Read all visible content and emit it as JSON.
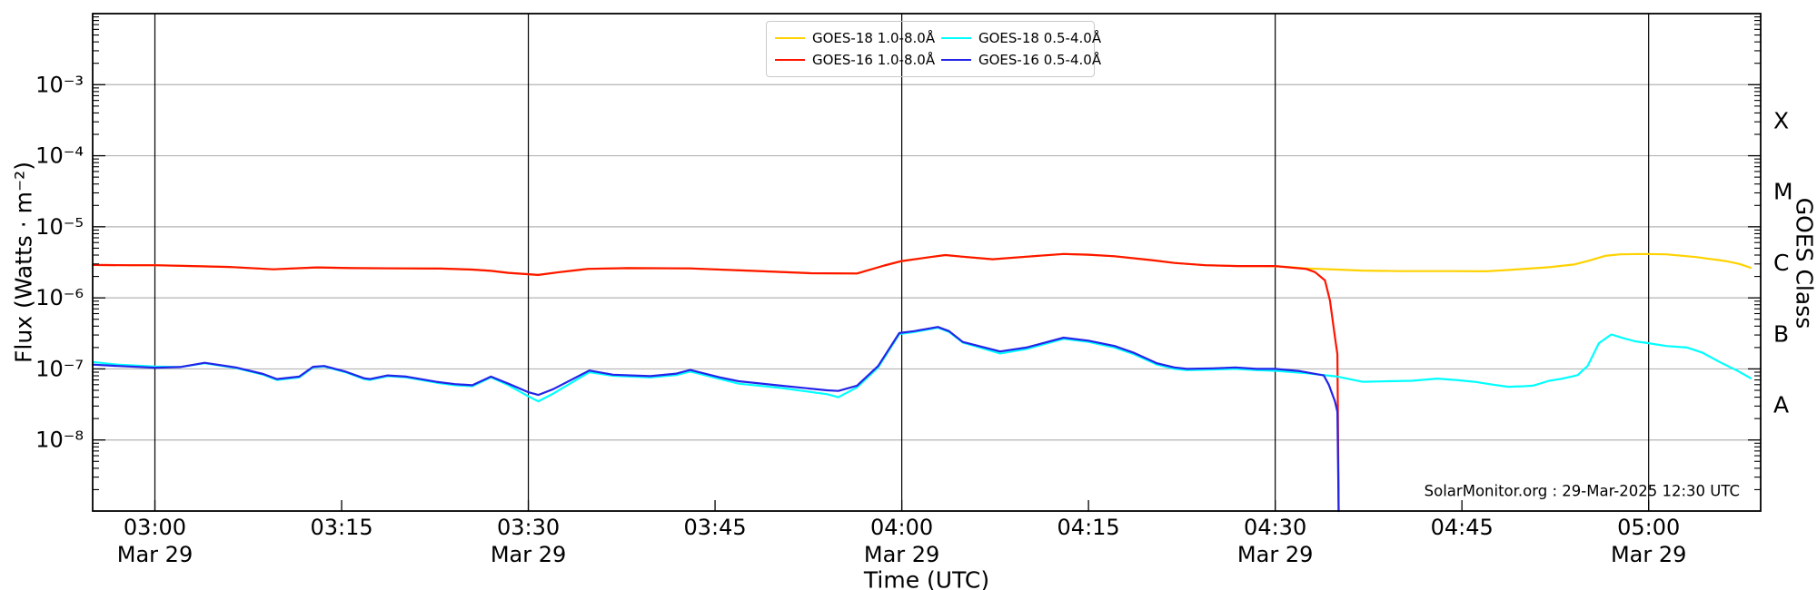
{
  "watermark": "SolarMonitor.org : 29-Mar-2025 12:30 UTC",
  "legend": {
    "entries": [
      {
        "label": "GOES-18 1.0-8.0Å",
        "color": "#ffd200"
      },
      {
        "label": "GOES-18 0.5-4.0Å",
        "color": "#00ffff"
      },
      {
        "label": "GOES-16 1.0-8.0Å",
        "color": "#ff1400"
      },
      {
        "label": "GOES-16 0.5-4.0Å",
        "color": "#2424e8"
      }
    ]
  },
  "chart_data": {
    "type": "line",
    "title": "",
    "xlabel": "Time (UTC)",
    "ylabel": "Flux (Watts · m⁻²)",
    "ylabel_right": "GOES Class",
    "x_units": "minutes after 2025-03-29 00:00 UTC",
    "x_range_minutes": [
      175,
      309
    ],
    "y_log_range_exponents": [
      -9,
      -2
    ],
    "grid": {
      "vertical_color": "#000000",
      "horizontal_color": "#b4b4b4"
    },
    "x_axis": {
      "gridline_minutes": [
        180,
        210,
        240,
        270,
        300
      ],
      "ticks": [
        {
          "minutes": 180,
          "label": "03:00",
          "day": "Mar 29"
        },
        {
          "minutes": 195,
          "label": "03:15",
          "day": ""
        },
        {
          "minutes": 210,
          "label": "03:30",
          "day": "Mar 29"
        },
        {
          "minutes": 225,
          "label": "03:45",
          "day": ""
        },
        {
          "minutes": 240,
          "label": "04:00",
          "day": "Mar 29"
        },
        {
          "minutes": 255,
          "label": "04:15",
          "day": ""
        },
        {
          "minutes": 270,
          "label": "04:30",
          "day": "Mar 29"
        },
        {
          "minutes": 285,
          "label": "04:45",
          "day": ""
        },
        {
          "minutes": 300,
          "label": "05:00",
          "day": "Mar 29"
        }
      ]
    },
    "y_axis": {
      "ticks": [
        {
          "exponent": -3,
          "label": "10⁻³"
        },
        {
          "exponent": -4,
          "label": "10⁻⁴"
        },
        {
          "exponent": -5,
          "label": "10⁻⁵"
        },
        {
          "exponent": -6,
          "label": "10⁻⁶"
        },
        {
          "exponent": -7,
          "label": "10⁻⁷"
        },
        {
          "exponent": -8,
          "label": "10⁻⁸"
        }
      ]
    },
    "y2_axis": {
      "class_labels": [
        {
          "label": "X",
          "exponent": -3.5
        },
        {
          "label": "M",
          "exponent": -4.5
        },
        {
          "label": "C",
          "exponent": -5.5
        },
        {
          "label": "B",
          "exponent": -6.5
        },
        {
          "label": "A",
          "exponent": -7.5
        }
      ]
    },
    "series": [
      {
        "name": "GOES-18 1.0-8.0Å",
        "color": "#ffd200",
        "width": 2.2,
        "points": [
          [
            175,
            2.9e-06
          ],
          [
            178,
            2.88e-06
          ],
          [
            180,
            2.88e-06
          ],
          [
            183,
            2.8e-06
          ],
          [
            186,
            2.72e-06
          ],
          [
            189.5,
            2.52e-06
          ],
          [
            193,
            2.68e-06
          ],
          [
            196,
            2.62e-06
          ],
          [
            200,
            2.6e-06
          ],
          [
            203,
            2.58e-06
          ],
          [
            205.5,
            2.5e-06
          ],
          [
            207,
            2.4e-06
          ],
          [
            208.4,
            2.25e-06
          ],
          [
            210.8,
            2.1e-06
          ],
          [
            212.5,
            2.3e-06
          ],
          [
            214.8,
            2.56e-06
          ],
          [
            218,
            2.62e-06
          ],
          [
            223,
            2.6e-06
          ],
          [
            228,
            2.4e-06
          ],
          [
            232.7,
            2.22e-06
          ],
          [
            236.4,
            2.2e-06
          ],
          [
            238.6,
            2.85e-06
          ],
          [
            240,
            3.3e-06
          ],
          [
            242.5,
            3.8e-06
          ],
          [
            243.5,
            4e-06
          ],
          [
            244.9,
            3.8e-06
          ],
          [
            247.3,
            3.5e-06
          ],
          [
            250,
            3.8e-06
          ],
          [
            253,
            4.15e-06
          ],
          [
            255,
            4.05e-06
          ],
          [
            257.1,
            3.85e-06
          ],
          [
            260,
            3.4e-06
          ],
          [
            261.9,
            3.1e-06
          ],
          [
            264.4,
            2.88e-06
          ],
          [
            267,
            2.8e-06
          ],
          [
            270,
            2.78e-06
          ],
          [
            271,
            2.72e-06
          ],
          [
            272.5,
            2.6e-06
          ],
          [
            275,
            2.5e-06
          ],
          [
            277,
            2.42e-06
          ],
          [
            280,
            2.38e-06
          ],
          [
            284,
            2.38e-06
          ],
          [
            287,
            2.36e-06
          ],
          [
            289.2,
            2.5e-06
          ],
          [
            292,
            2.7e-06
          ],
          [
            294,
            2.95e-06
          ],
          [
            295.1,
            3.3e-06
          ],
          [
            296.5,
            3.9e-06
          ],
          [
            297.7,
            4.1e-06
          ],
          [
            299.5,
            4.15e-06
          ],
          [
            301.4,
            4.1e-06
          ],
          [
            303.8,
            3.75e-06
          ],
          [
            306.2,
            3.3e-06
          ],
          [
            307.3,
            3e-06
          ],
          [
            308.2,
            2.65e-06
          ]
        ]
      },
      {
        "name": "GOES-16 1.0-8.0Å",
        "color": "#ff1400",
        "width": 2.2,
        "points": [
          [
            175,
            2.9e-06
          ],
          [
            178,
            2.88e-06
          ],
          [
            180,
            2.88e-06
          ],
          [
            183,
            2.8e-06
          ],
          [
            186,
            2.72e-06
          ],
          [
            189.5,
            2.52e-06
          ],
          [
            193,
            2.68e-06
          ],
          [
            196,
            2.62e-06
          ],
          [
            200,
            2.6e-06
          ],
          [
            203,
            2.58e-06
          ],
          [
            205.5,
            2.5e-06
          ],
          [
            207,
            2.4e-06
          ],
          [
            208.4,
            2.25e-06
          ],
          [
            210.8,
            2.1e-06
          ],
          [
            212.5,
            2.3e-06
          ],
          [
            214.8,
            2.56e-06
          ],
          [
            218,
            2.62e-06
          ],
          [
            223,
            2.6e-06
          ],
          [
            228,
            2.4e-06
          ],
          [
            232.7,
            2.22e-06
          ],
          [
            236.4,
            2.2e-06
          ],
          [
            238.6,
            2.85e-06
          ],
          [
            240,
            3.3e-06
          ],
          [
            242.5,
            3.8e-06
          ],
          [
            243.5,
            4e-06
          ],
          [
            244.9,
            3.8e-06
          ],
          [
            247.3,
            3.5e-06
          ],
          [
            250,
            3.8e-06
          ],
          [
            253,
            4.15e-06
          ],
          [
            255,
            4.05e-06
          ],
          [
            257.1,
            3.85e-06
          ],
          [
            260,
            3.4e-06
          ],
          [
            261.9,
            3.1e-06
          ],
          [
            264.4,
            2.88e-06
          ],
          [
            267,
            2.8e-06
          ],
          [
            270,
            2.8e-06
          ],
          [
            272.5,
            2.55e-06
          ],
          [
            273.2,
            2.3e-06
          ],
          [
            274,
            1.76e-06
          ],
          [
            274.4,
            9.2e-07
          ],
          [
            274.8,
            2.8e-07
          ],
          [
            275,
            1.6e-07
          ],
          [
            275.1,
            1e-09
          ]
        ]
      },
      {
        "name": "GOES-18 0.5-4.0Å",
        "color": "#00ffff",
        "width": 2.2,
        "points": [
          [
            175,
            1.25e-07
          ],
          [
            177,
            1.15e-07
          ],
          [
            180,
            1.08e-07
          ],
          [
            182,
            1.06e-07
          ],
          [
            184,
            1.2e-07
          ],
          [
            186.5,
            1.03e-07
          ],
          [
            188.7,
            8.3e-08
          ],
          [
            189.8,
            7e-08
          ],
          [
            191.6,
            7.6e-08
          ],
          [
            192.7,
            1.05e-07
          ],
          [
            193.6,
            1.08e-07
          ],
          [
            195.3,
            9e-08
          ],
          [
            196.8,
            7.2e-08
          ],
          [
            197.3,
            7e-08
          ],
          [
            198.7,
            7.9e-08
          ],
          [
            200.2,
            7.6e-08
          ],
          [
            202.6,
            6.4e-08
          ],
          [
            204.1,
            5.9e-08
          ],
          [
            205.5,
            5.7e-08
          ],
          [
            207,
            7.6e-08
          ],
          [
            208.4,
            5.9e-08
          ],
          [
            210,
            4.1e-08
          ],
          [
            210.8,
            3.5e-08
          ],
          [
            212,
            4.5e-08
          ],
          [
            214.9,
            9e-08
          ],
          [
            216.8,
            8e-08
          ],
          [
            219.8,
            7.6e-08
          ],
          [
            221.9,
            8.2e-08
          ],
          [
            223,
            9.2e-08
          ],
          [
            225.4,
            7.2e-08
          ],
          [
            226.9,
            6.2e-08
          ],
          [
            230.3,
            5.4e-08
          ],
          [
            234,
            4.4e-08
          ],
          [
            234.9,
            4e-08
          ],
          [
            236.4,
            5.5e-08
          ],
          [
            238.1,
            1.05e-07
          ],
          [
            239.8,
            3.1e-07
          ],
          [
            241,
            3.3e-07
          ],
          [
            242.9,
            3.8e-07
          ],
          [
            243.8,
            3.3e-07
          ],
          [
            244.9,
            2.35e-07
          ],
          [
            247.9,
            1.65e-07
          ],
          [
            250,
            1.9e-07
          ],
          [
            253,
            2.65e-07
          ],
          [
            255,
            2.4e-07
          ],
          [
            257.1,
            2e-07
          ],
          [
            258.6,
            1.62e-07
          ],
          [
            260.5,
            1.15e-07
          ],
          [
            261.9,
            1e-07
          ],
          [
            262.9,
            9.6e-08
          ],
          [
            265,
            9.8e-08
          ],
          [
            266.8,
            1e-07
          ],
          [
            268.5,
            9.6e-08
          ],
          [
            270,
            9.4e-08
          ],
          [
            272.5,
            8.7e-08
          ],
          [
            275,
            7.8e-08
          ],
          [
            277,
            6.6e-08
          ],
          [
            279,
            6.7e-08
          ],
          [
            281,
            6.8e-08
          ],
          [
            283,
            7.3e-08
          ],
          [
            284.5,
            7e-08
          ],
          [
            286,
            6.6e-08
          ],
          [
            287.5,
            6e-08
          ],
          [
            288.7,
            5.6e-08
          ],
          [
            290,
            5.7e-08
          ],
          [
            290.7,
            5.8e-08
          ],
          [
            292,
            6.8e-08
          ],
          [
            292.9,
            7.2e-08
          ],
          [
            293.8,
            7.8e-08
          ],
          [
            294.3,
            8.2e-08
          ],
          [
            295.1,
            1.1e-07
          ],
          [
            296,
            2.3e-07
          ],
          [
            297,
            3.05e-07
          ],
          [
            298,
            2.7e-07
          ],
          [
            298.9,
            2.45e-07
          ],
          [
            300,
            2.3e-07
          ],
          [
            301.4,
            2.1e-07
          ],
          [
            303.1,
            2e-07
          ],
          [
            304.3,
            1.7e-07
          ],
          [
            305.7,
            1.25e-07
          ],
          [
            307.2,
            9.3e-08
          ],
          [
            308.2,
            7.4e-08
          ]
        ]
      },
      {
        "name": "GOES-16 0.5-4.0Å",
        "color": "#2424e8",
        "width": 2.2,
        "points": [
          [
            175,
            1.15e-07
          ],
          [
            177,
            1.1e-07
          ],
          [
            180,
            1.04e-07
          ],
          [
            182,
            1.06e-07
          ],
          [
            184,
            1.22e-07
          ],
          [
            186.5,
            1.05e-07
          ],
          [
            188.7,
            8.5e-08
          ],
          [
            189.8,
            7.2e-08
          ],
          [
            191.6,
            7.8e-08
          ],
          [
            192.7,
            1.07e-07
          ],
          [
            193.6,
            1.1e-07
          ],
          [
            195.3,
            9.2e-08
          ],
          [
            196.8,
            7.4e-08
          ],
          [
            197.3,
            7.2e-08
          ],
          [
            198.7,
            8.1e-08
          ],
          [
            200.2,
            7.8e-08
          ],
          [
            202.6,
            6.6e-08
          ],
          [
            204.1,
            6.1e-08
          ],
          [
            205.5,
            5.9e-08
          ],
          [
            207,
            7.8e-08
          ],
          [
            208.4,
            6.2e-08
          ],
          [
            210,
            4.7e-08
          ],
          [
            210.8,
            4.3e-08
          ],
          [
            212,
            5.2e-08
          ],
          [
            214.9,
            9.5e-08
          ],
          [
            216.8,
            8.3e-08
          ],
          [
            219.8,
            7.9e-08
          ],
          [
            221.9,
            8.6e-08
          ],
          [
            223,
            9.7e-08
          ],
          [
            225.4,
            7.6e-08
          ],
          [
            226.9,
            6.7e-08
          ],
          [
            230.3,
            5.8e-08
          ],
          [
            234,
            5e-08
          ],
          [
            234.9,
            4.9e-08
          ],
          [
            236.4,
            5.8e-08
          ],
          [
            238.1,
            1.1e-07
          ],
          [
            239.8,
            3.2e-07
          ],
          [
            241,
            3.4e-07
          ],
          [
            242.9,
            3.9e-07
          ],
          [
            243.8,
            3.4e-07
          ],
          [
            244.9,
            2.4e-07
          ],
          [
            247.9,
            1.76e-07
          ],
          [
            250,
            2e-07
          ],
          [
            253,
            2.75e-07
          ],
          [
            255,
            2.5e-07
          ],
          [
            257.1,
            2.1e-07
          ],
          [
            258.6,
            1.7e-07
          ],
          [
            260.5,
            1.2e-07
          ],
          [
            261.9,
            1.05e-07
          ],
          [
            262.9,
            1e-07
          ],
          [
            265,
            1.02e-07
          ],
          [
            266.8,
            1.05e-07
          ],
          [
            268.5,
            1e-07
          ],
          [
            270,
            1e-07
          ],
          [
            272,
            9.3e-08
          ],
          [
            273.9,
            8.1e-08
          ],
          [
            274.3,
            6e-08
          ],
          [
            274.8,
            3.5e-08
          ],
          [
            275,
            2.5e-08
          ],
          [
            275.1,
            1e-09
          ]
        ]
      }
    ]
  }
}
